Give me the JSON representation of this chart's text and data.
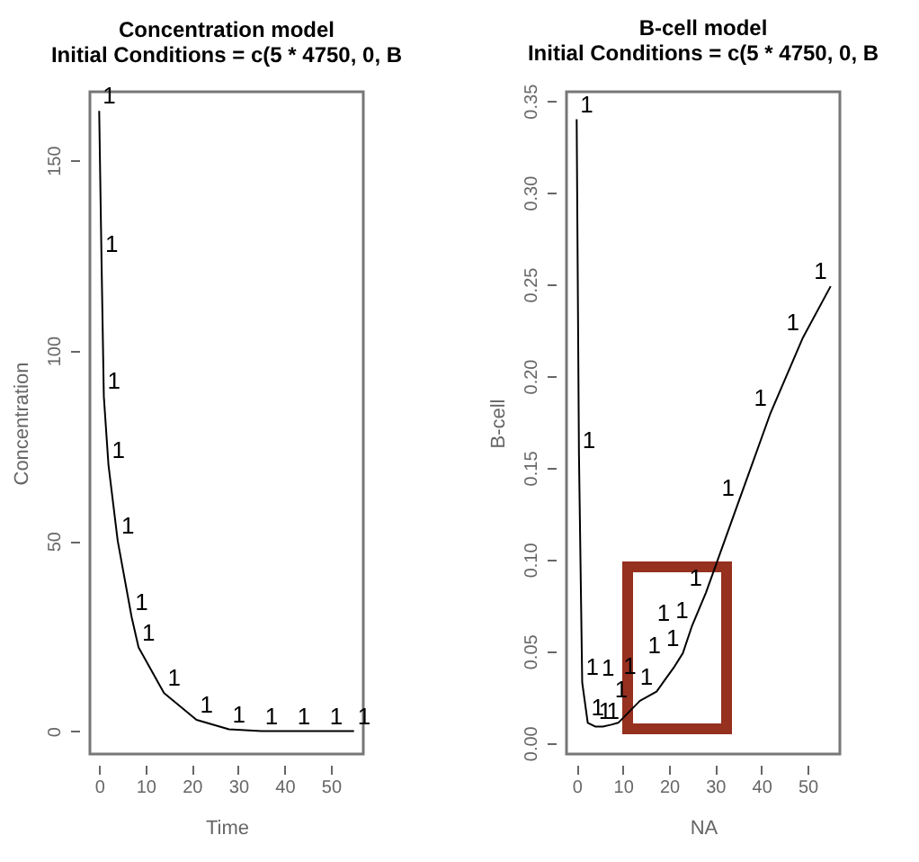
{
  "chart_data": [
    {
      "type": "line",
      "title": [
        "Concentration model",
        "Initial Conditions =  c(5 * 4750, 0, B"
      ],
      "xlabel": "Time",
      "ylabel": "Concentration",
      "xlim": [
        -2,
        57
      ],
      "xticks": [
        0,
        10,
        20,
        30,
        40,
        50
      ],
      "ylim": [
        -6,
        168
      ],
      "yticks": [
        0,
        50,
        100,
        150
      ],
      "grid": false,
      "series": [
        {
          "name": "1",
          "color": "#000000",
          "x": [
            0,
            0.5,
            1,
            2,
            4,
            7,
            8.5,
            14,
            21,
            28,
            35,
            42,
            49,
            55
          ],
          "values": [
            163,
            124,
            88,
            70,
            50,
            30,
            22,
            10,
            3,
            0.5,
            0,
            0,
            0,
            0
          ]
        }
      ]
    },
    {
      "type": "line",
      "title": [
        "B-cell model",
        "Initial Conditions =  c(5 * 4750, 0, B"
      ],
      "xlabel": "NA",
      "ylabel": "B-cell",
      "xlim": [
        -2.2,
        57
      ],
      "xticks": [
        0,
        10,
        20,
        30,
        40,
        50
      ],
      "ylim": [
        -0.006,
        0.355
      ],
      "yticks": [
        {
          "value": 0,
          "label": "0.00"
        },
        {
          "value": 0.05,
          "label": "0.05"
        },
        {
          "value": 0.1,
          "label": "0.10"
        },
        {
          "value": 0.15,
          "label": "0.15"
        },
        {
          "value": 0.2,
          "label": "0.20"
        },
        {
          "value": 0.25,
          "label": "0.25"
        },
        {
          "value": 0.3,
          "label": "0.30"
        },
        {
          "value": 0.35,
          "label": "0.35"
        }
      ],
      "grid": false,
      "series": [
        {
          "name": "1",
          "color": "#000000",
          "x": [
            0,
            0.5,
            1.2,
            2.4,
            4,
            5.7,
            7.5,
            9,
            13.7,
            17.3,
            19,
            21,
            23,
            25,
            28,
            35,
            42,
            49,
            55
          ],
          "values": [
            0.34,
            0.157,
            0.033,
            0.011,
            0.009,
            0.009,
            0.01,
            0.011,
            0.023,
            0.028,
            0.034,
            0.041,
            0.049,
            0.064,
            0.082,
            0.131,
            0.18,
            0.221,
            0.249
          ]
        }
      ]
    }
  ]
}
